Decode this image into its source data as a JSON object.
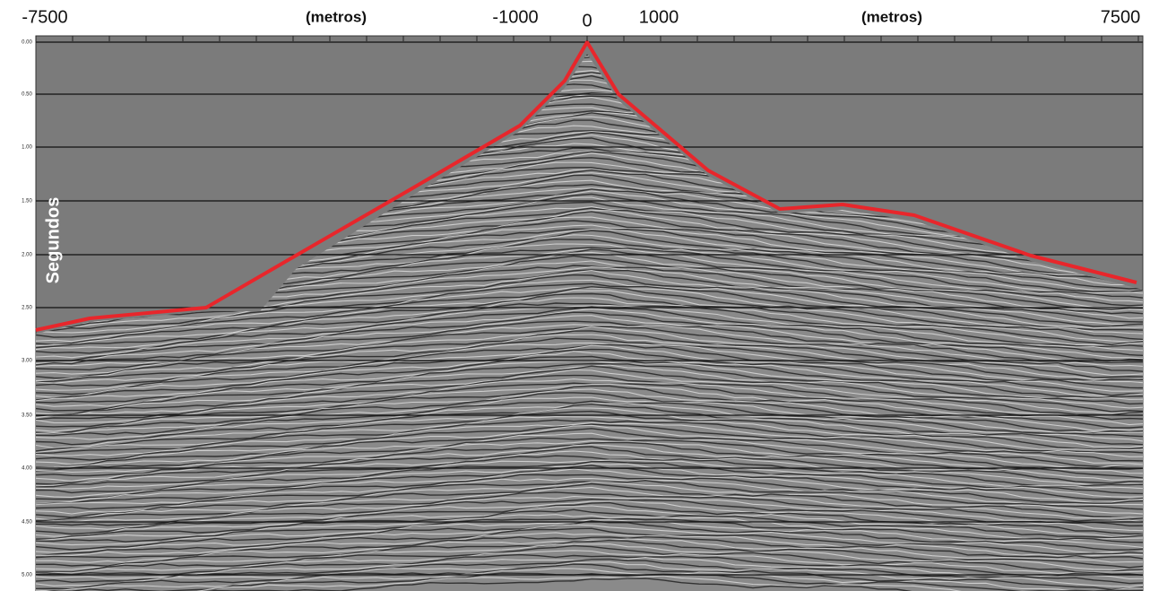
{
  "top_axis": {
    "labels": [
      "-7500",
      "(metros)",
      "-1000",
      "0",
      "1000",
      "(metros)",
      "7500"
    ]
  },
  "left_axis": {
    "title": "Segundos",
    "labels": [
      "0.00",
      "0.50",
      "1.00",
      "1.50",
      "2.00",
      "2.50",
      "3.00",
      "3.50",
      "4.00",
      "4.50",
      "5.00"
    ]
  }
}
